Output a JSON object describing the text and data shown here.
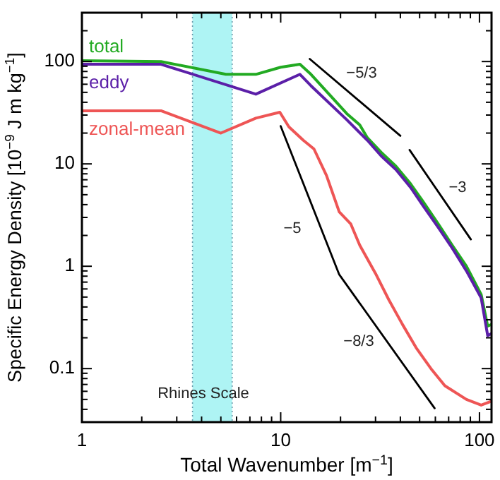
{
  "chart_data": {
    "type": "line",
    "xlabel": "Total Wavenumber [m$^{−1}$]",
    "ylabel": "Specific Energy Density [10$^{−9}$ J m kg$^{−1}$]",
    "log": "xy",
    "grid": false,
    "marker": "none",
    "line_style": "solid",
    "xlim": [
      1,
      115
    ],
    "ylim": [
      0.03,
      300
    ],
    "xticks": [
      1,
      {
        "value": 2,
        "label": null
      },
      {
        "value": 3,
        "label": null
      },
      {
        "value": 4,
        "label": null
      },
      {
        "value": 5,
        "label": null
      },
      {
        "value": 6,
        "label": null
      },
      {
        "value": 7,
        "label": null
      },
      {
        "value": 8,
        "label": null
      },
      {
        "value": 9,
        "label": null
      },
      10,
      {
        "value": 20,
        "label": null
      },
      {
        "value": 30,
        "label": null
      },
      {
        "value": 40,
        "label": null
      },
      {
        "value": 50,
        "label": null
      },
      {
        "value": 60,
        "label": null
      },
      {
        "value": 70,
        "label": null
      },
      {
        "value": 80,
        "label": null
      },
      {
        "value": 90,
        "label": null
      },
      100
    ],
    "yticks": [
      {
        "value": 0.04,
        "label": null
      },
      {
        "value": 0.05,
        "label": null
      },
      {
        "value": 0.06,
        "label": null
      },
      {
        "value": 0.07,
        "label": null
      },
      {
        "value": 0.08,
        "label": null
      },
      {
        "value": 0.09,
        "label": null
      },
      0.1,
      {
        "value": 0.2,
        "label": null
      },
      {
        "value": 0.3,
        "label": null
      },
      {
        "value": 0.4,
        "label": null
      },
      {
        "value": 0.5,
        "label": null
      },
      {
        "value": 0.6,
        "label": null
      },
      {
        "value": 0.7,
        "label": null
      },
      {
        "value": 0.8,
        "label": null
      },
      {
        "value": 0.9,
        "label": null
      },
      1,
      {
        "value": 2,
        "label": null
      },
      {
        "value": 3,
        "label": null
      },
      {
        "value": 4,
        "label": null
      },
      {
        "value": 5,
        "label": null
      },
      {
        "value": 6,
        "label": null
      },
      {
        "value": 7,
        "label": null
      },
      {
        "value": 8,
        "label": null
      },
      {
        "value": 9,
        "label": null
      },
      10,
      {
        "value": 20,
        "label": null
      },
      {
        "value": 30,
        "label": null
      },
      {
        "value": 40,
        "label": null
      },
      {
        "value": 50,
        "label": null
      },
      {
        "value": 60,
        "label": null
      },
      {
        "value": 70,
        "label": null
      },
      {
        "value": 80,
        "label": null
      },
      {
        "value": 90,
        "label": null
      },
      100,
      {
        "value": 200,
        "label": null
      }
    ],
    "bands": [
      {
        "axis": "x",
        "from": 3.6,
        "to": 5.7,
        "color": "#aef4f4"
      }
    ],
    "ref_lines": [
      {
        "axis": "x",
        "value": 3.6,
        "color": "#6699aa",
        "line_style": "dotted"
      },
      {
        "axis": "x",
        "value": 5.7,
        "color": "#6699aa",
        "line_style": "dotted"
      }
    ],
    "annotations": [
      "Rhines Scale",
      "−5/3",
      "−3",
      "−5",
      "−8/3"
    ],
    "series": [
      {
        "name": "total",
        "color": "#22aa22",
        "x": [
          1,
          2.5,
          5.3,
          7.5,
          10,
          12.5,
          14.2,
          21.5,
          25,
          27.3,
          32,
          38,
          45,
          52,
          62,
          73,
          86,
          102,
          110,
          115
        ],
        "values": [
          102,
          100,
          75,
          75,
          88,
          94,
          75,
          31,
          24,
          18,
          13,
          9.5,
          6.4,
          4.3,
          2.6,
          1.6,
          1,
          0.53,
          0.26,
          0.27
        ]
      },
      {
        "name": "eddy",
        "color": "#5b1fa8",
        "x": [
          1,
          2.5,
          7.5,
          12.5,
          14.2,
          21.5,
          27.3,
          32,
          38,
          45,
          52,
          62,
          73,
          86,
          102,
          110,
          115
        ],
        "values": [
          94,
          94,
          48,
          75,
          58,
          27,
          17,
          12,
          8.8,
          5.9,
          3.9,
          2.4,
          1.5,
          0.9,
          0.49,
          0.21,
          0.22
        ]
      },
      {
        "name": "zonal-mean",
        "color": "#ee5555",
        "x": [
          1,
          2.5,
          5,
          7.5,
          9.9,
          11,
          13,
          14.7,
          17,
          19.7,
          22.5,
          25,
          30,
          35,
          41,
          48,
          57,
          67,
          86,
          102,
          115
        ],
        "values": [
          33,
          33,
          20,
          28,
          32,
          23,
          17,
          14,
          7.7,
          3.4,
          2.6,
          1.6,
          0.85,
          0.47,
          0.27,
          0.16,
          0.1,
          0.068,
          0.05,
          0.044,
          0.048
        ]
      },
      {
        "color": "#000000",
        "x": [
          14,
          40
        ],
        "values": [
          106,
          18.8
        ]
      },
      {
        "color": "#000000",
        "x": [
          44.5,
          90.5
        ],
        "values": [
          13.7,
          1.83
        ]
      },
      {
        "color": "#000000",
        "x": [
          10,
          19.7,
          59.5
        ],
        "values": [
          23.4,
          0.83,
          0.041
        ]
      }
    ]
  }
}
